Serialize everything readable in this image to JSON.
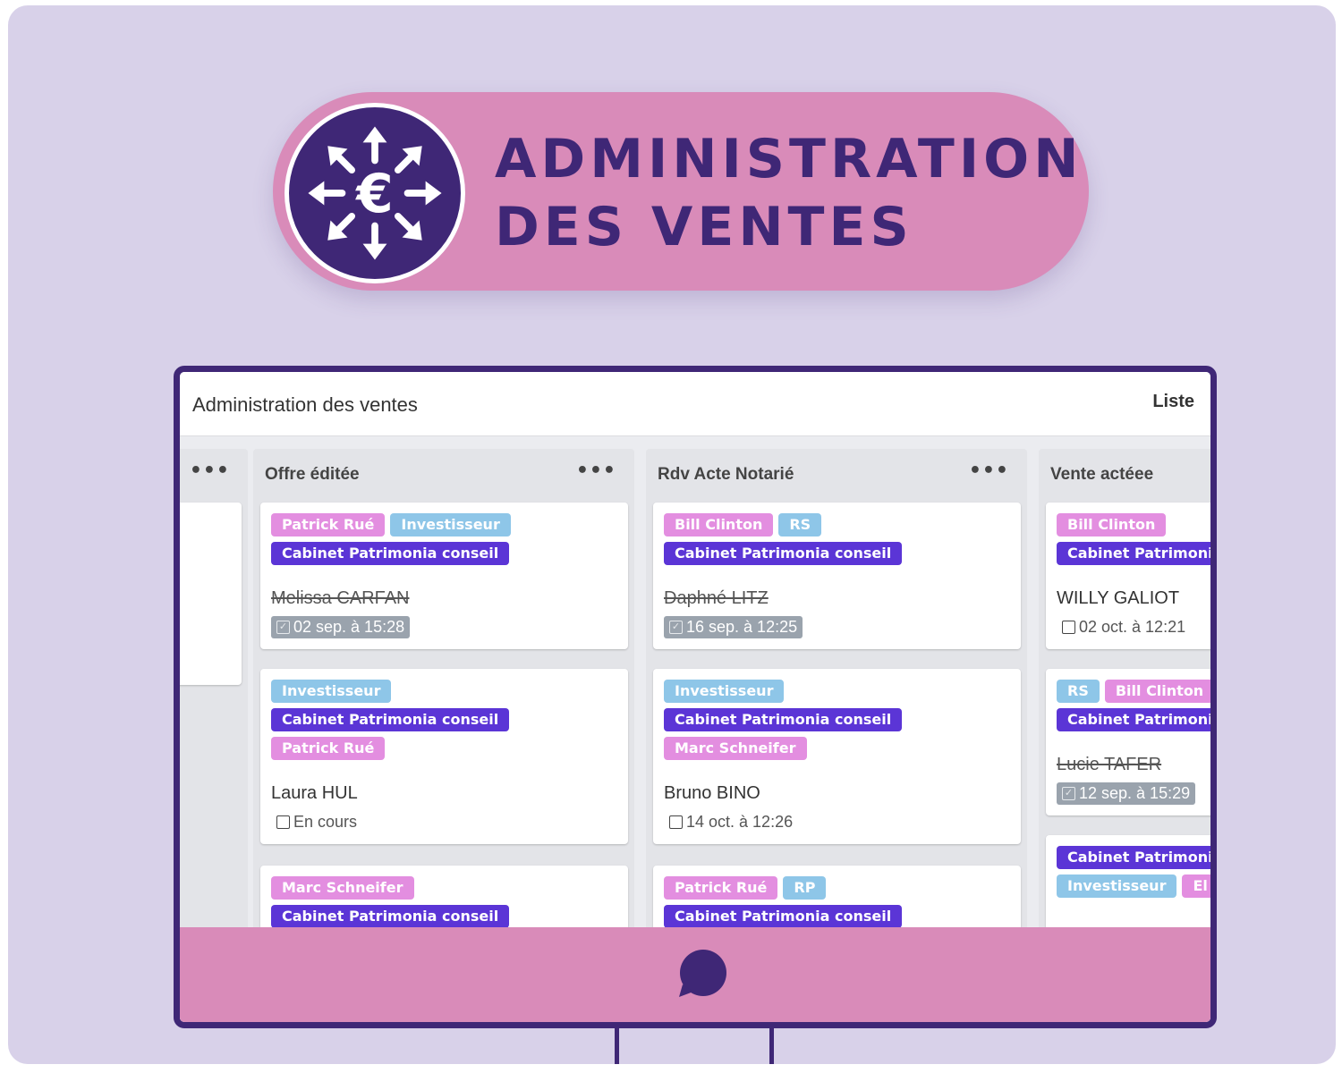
{
  "banner": {
    "title_line1": "ADMINISTRATION",
    "title_line2": "DES VENTES",
    "logo_icon": "euro-arrows-icon"
  },
  "app": {
    "title": "Administration des ventes",
    "view_label": "Liste"
  },
  "colors": {
    "dark_purple": "#3f2776",
    "pink": "#d98bb9",
    "background": "#d8d1e9",
    "tag_pink": "#e38ee0",
    "tag_blue": "#8ec6e8",
    "tag_purple": "#5b35d6"
  },
  "columns": [
    {
      "title": "",
      "menu": "•••"
    },
    {
      "title": "Offre éditée",
      "menu": "•••",
      "cards": [
        {
          "tags": [
            "Patrick Rué",
            "Investisseur",
            "Cabinet Patrimonia conseil"
          ],
          "name": "Melissa CARFAN",
          "date": "02 sep. à 15:28",
          "done": true
        },
        {
          "tags": [
            "Investisseur",
            "Cabinet Patrimonia conseil",
            "Patrick Rué"
          ],
          "name": "Laura HUL",
          "date": "En cours",
          "done": false
        },
        {
          "tags": [
            "Marc Schneifer",
            "Cabinet Patrimonia conseil"
          ]
        }
      ]
    },
    {
      "title": "Rdv Acte Notarié",
      "menu": "•••",
      "cards": [
        {
          "tags": [
            "Bill Clinton",
            "RS",
            "Cabinet Patrimonia conseil"
          ],
          "name": "Daphné LITZ",
          "date": "16 sep. à 12:25",
          "done": true
        },
        {
          "tags": [
            "Investisseur",
            "Cabinet Patrimonia conseil",
            "Marc Schneifer"
          ],
          "name": "Bruno BINO",
          "date": "14 oct. à 12:26",
          "done": false
        },
        {
          "tags": [
            "Patrick Rué",
            "RP",
            "Cabinet Patrimonia conseil"
          ]
        }
      ]
    },
    {
      "title": "Vente actéee",
      "cards": [
        {
          "tags": [
            "Bill Clinton",
            "Cabinet Patrimonia conseil"
          ],
          "name": "WILLY GALIOT",
          "date": "02 oct. à 12:21",
          "done": false
        },
        {
          "tags": [
            "RS",
            "Bill Clinton",
            "Cabinet Patrimonia conseil"
          ],
          "name": "Lucie TAFER",
          "date": "12 sep. à 15:29",
          "done": true
        },
        {
          "tags": [
            "Cabinet Patrimonia conseil",
            "Investisseur",
            "El"
          ]
        }
      ]
    }
  ]
}
